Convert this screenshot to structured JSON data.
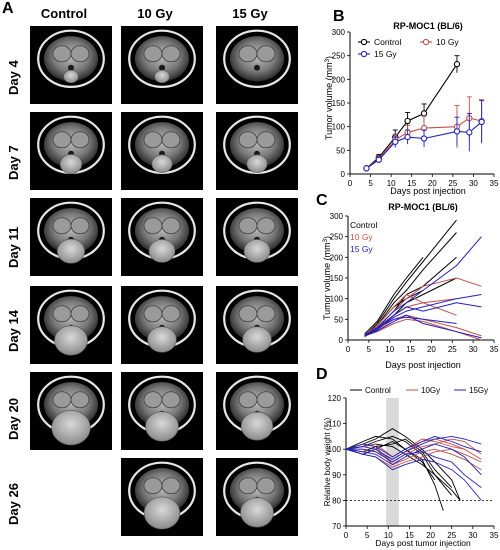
{
  "panels": {
    "a": "A",
    "b": "B",
    "c": "C",
    "d": "D"
  },
  "mri": {
    "columns": [
      "Control",
      "10 Gy",
      "15 Gy"
    ],
    "rows": [
      "Day 4",
      "Day 7",
      "Day 11",
      "Day 14",
      "Day 20",
      "Day 26"
    ]
  },
  "chart_data": [
    {
      "type": "line",
      "title": "RP-MOC1  (BL/6)",
      "xlabel": "Days post injection",
      "ylabel": "Tumor volume (mm3)",
      "xlim": [
        0,
        35
      ],
      "ylim": [
        0,
        300
      ],
      "xticks": [
        0,
        5,
        10,
        15,
        20,
        25,
        30,
        35
      ],
      "yticks": [
        0,
        50,
        100,
        150,
        200,
        250,
        300
      ],
      "legend": "top-left",
      "series": [
        {
          "name": "Control",
          "color": "#000000",
          "marker": "circle",
          "x": [
            4,
            7,
            11,
            14,
            18,
            26
          ],
          "y": [
            12,
            35,
            78,
            112,
            128,
            232
          ],
          "err": [
            3,
            6,
            15,
            18,
            20,
            18
          ]
        },
        {
          "name": "10 Gy",
          "color": "#c0504d",
          "marker": "circle",
          "x": [
            4,
            7,
            11,
            14,
            18,
            26,
            29,
            32
          ],
          "y": [
            12,
            32,
            72,
            88,
            97,
            100,
            118,
            112
          ],
          "err": [
            3,
            6,
            12,
            15,
            25,
            45,
            45,
            45
          ]
        },
        {
          "name": "15 Gy",
          "color": "#1f1fbf",
          "marker": "circle",
          "x": [
            4,
            7,
            11,
            14,
            18,
            26,
            29,
            32
          ],
          "y": [
            12,
            30,
            68,
            78,
            75,
            90,
            88,
            110
          ],
          "err": [
            3,
            6,
            12,
            15,
            18,
            30,
            40,
            45
          ]
        }
      ]
    },
    {
      "type": "line",
      "title": "RP-MOC1  (BL/6)",
      "xlabel": "Days post injection",
      "ylabel": "Tumor volume (mm3)",
      "xlim": [
        0,
        35
      ],
      "ylim": [
        0,
        300
      ],
      "xticks": [
        0,
        5,
        10,
        15,
        20,
        25,
        30,
        35
      ],
      "yticks": [
        0,
        50,
        100,
        150,
        200,
        250,
        300
      ],
      "legend": "top-left",
      "groups": [
        {
          "name": "Control",
          "color": "#000000",
          "lines": [
            {
              "x": [
                4,
                7,
                11,
                14,
                18,
                26
              ],
              "y": [
                10,
                40,
                100,
                140,
                190,
                290
              ]
            },
            {
              "x": [
                4,
                7,
                11,
                14,
                18,
                26
              ],
              "y": [
                12,
                35,
                90,
                120,
                170,
                260
              ]
            },
            {
              "x": [
                4,
                7,
                11,
                14,
                18
              ],
              "y": [
                15,
                45,
                110,
                150,
                200
              ]
            },
            {
              "x": [
                4,
                7,
                11,
                14,
                18,
                26
              ],
              "y": [
                8,
                30,
                70,
                110,
                130,
                200
              ]
            },
            {
              "x": [
                4,
                7,
                11,
                14,
                18
              ],
              "y": [
                10,
                35,
                80,
                100,
                120
              ]
            },
            {
              "x": [
                4,
                7,
                11,
                14,
                18,
                26
              ],
              "y": [
                11,
                30,
                60,
                90,
                110,
                150
              ]
            }
          ]
        },
        {
          "name": "10 Gy",
          "color": "#c0504d",
          "lines": [
            {
              "x": [
                4,
                7,
                11,
                14,
                18,
                26,
                32
              ],
              "y": [
                10,
                30,
                70,
                100,
                130,
                150,
                130
              ]
            },
            {
              "x": [
                4,
                7,
                11,
                14,
                18,
                26
              ],
              "y": [
                12,
                28,
                60,
                80,
                90,
                100
              ]
            },
            {
              "x": [
                4,
                7,
                11,
                14,
                18,
                26,
                32
              ],
              "y": [
                9,
                25,
                50,
                60,
                50,
                30,
                10
              ]
            },
            {
              "x": [
                4,
                7,
                11,
                14,
                18,
                26
              ],
              "y": [
                11,
                35,
                80,
                110,
                90,
                60
              ]
            },
            {
              "x": [
                4,
                7,
                11,
                14,
                18,
                26,
                32
              ],
              "y": [
                10,
                20,
                40,
                50,
                45,
                20,
                0
              ]
            }
          ]
        },
        {
          "name": "15 Gy",
          "color": "#1f1fbf",
          "lines": [
            {
              "x": [
                4,
                7,
                11,
                14,
                18,
                26,
                32
              ],
              "y": [
                10,
                30,
                70,
                90,
                120,
                180,
                250
              ]
            },
            {
              "x": [
                4,
                7,
                11,
                14,
                18,
                26,
                32
              ],
              "y": [
                12,
                28,
                55,
                70,
                80,
                100,
                110
              ]
            },
            {
              "x": [
                4,
                7,
                11,
                14,
                18,
                26,
                32
              ],
              "y": [
                9,
                25,
                60,
                80,
                70,
                90,
                80
              ]
            },
            {
              "x": [
                4,
                7,
                11,
                14,
                18,
                26
              ],
              "y": [
                11,
                30,
                50,
                55,
                50,
                40
              ]
            },
            {
              "x": [
                4,
                7,
                11,
                14,
                18,
                26,
                32
              ],
              "y": [
                10,
                22,
                45,
                60,
                40,
                20,
                5
              ]
            }
          ]
        }
      ]
    },
    {
      "type": "line",
      "title": "",
      "xlabel": "Days post tumor injection",
      "ylabel": "Relative body weight (%)",
      "xlim": [
        0,
        35
      ],
      "ylim": [
        70,
        120
      ],
      "xticks": [
        0,
        5,
        10,
        15,
        20,
        25,
        30,
        35
      ],
      "yticks": [
        70,
        80,
        90,
        100,
        110,
        120
      ],
      "legend": "top",
      "reference_line": 80,
      "shaded_x": [
        9.5,
        12.5
      ],
      "groups": [
        {
          "name": "Control",
          "color": "#000000",
          "lines": [
            {
              "x": [
                0,
                4,
                7,
                11,
                14,
                18,
                21,
                25,
                27
              ],
              "y": [
                100,
                102,
                104,
                108,
                105,
                100,
                95,
                88,
                80
              ]
            },
            {
              "x": [
                0,
                4,
                7,
                11,
                14,
                18,
                21,
                25
              ],
              "y": [
                100,
                101,
                103,
                105,
                103,
                98,
                90,
                82
              ]
            },
            {
              "x": [
                0,
                4,
                7,
                11,
                14,
                18,
                21,
                25
              ],
              "y": [
                100,
                99,
                101,
                102,
                104,
                99,
                92,
                85
              ]
            },
            {
              "x": [
                0,
                4,
                7,
                11,
                14,
                18,
                21
              ],
              "y": [
                100,
                103,
                105,
                104,
                100,
                95,
                88
              ]
            },
            {
              "x": [
                0,
                4,
                7,
                11,
                14,
                18,
                21,
                23
              ],
              "y": [
                100,
                98,
                100,
                103,
                100,
                96,
                86,
                76
              ]
            },
            {
              "x": [
                0,
                4,
                7,
                11,
                14,
                18,
                21,
                25,
                27
              ],
              "y": [
                100,
                101,
                102,
                101,
                98,
                94,
                90,
                84,
                80
              ]
            }
          ]
        },
        {
          "name": "10Gy",
          "color": "#c0504d",
          "lines": [
            {
              "x": [
                0,
                4,
                7,
                11,
                14,
                18,
                21,
                25,
                28,
                32
              ],
              "y": [
                100,
                101,
                102,
                97,
                100,
                104,
                103,
                101,
                100,
                96
              ]
            },
            {
              "x": [
                0,
                4,
                7,
                11,
                14,
                18,
                21,
                25,
                28,
                32
              ],
              "y": [
                100,
                99,
                100,
                95,
                98,
                101,
                102,
                104,
                103,
                98
              ]
            },
            {
              "x": [
                0,
                4,
                7,
                11,
                14,
                18,
                21,
                25,
                28,
                32
              ],
              "y": [
                100,
                102,
                101,
                94,
                96,
                99,
                100,
                98,
                96,
                92
              ]
            },
            {
              "x": [
                0,
                4,
                7,
                11,
                14,
                18,
                21,
                25,
                28
              ],
              "y": [
                100,
                100,
                99,
                96,
                99,
                103,
                104,
                102,
                100
              ]
            },
            {
              "x": [
                0,
                4,
                7,
                11,
                14,
                18,
                21,
                25,
                28,
                32
              ],
              "y": [
                100,
                98,
                97,
                93,
                95,
                97,
                99,
                100,
                98,
                95
              ]
            }
          ]
        },
        {
          "name": "15Gy",
          "color": "#1f1fbf",
          "lines": [
            {
              "x": [
                0,
                4,
                7,
                11,
                14,
                18,
                21,
                25,
                28,
                32
              ],
              "y": [
                100,
                101,
                100,
                96,
                99,
                102,
                104,
                105,
                104,
                102
              ]
            },
            {
              "x": [
                0,
                4,
                7,
                11,
                14,
                18,
                21,
                25,
                28,
                32
              ],
              "y": [
                100,
                99,
                98,
                94,
                97,
                100,
                102,
                100,
                97,
                90
              ]
            },
            {
              "x": [
                0,
                4,
                7,
                11,
                14,
                18,
                21,
                25,
                28,
                32
              ],
              "y": [
                100,
                100,
                99,
                95,
                98,
                99,
                97,
                95,
                90,
                85
              ]
            },
            {
              "x": [
                0,
                4,
                7,
                11,
                14,
                18,
                21,
                25,
                28,
                32
              ],
              "y": [
                100,
                102,
                101,
                97,
                100,
                103,
                105,
                103,
                101,
                99
              ]
            },
            {
              "x": [
                0,
                4,
                7,
                11,
                14,
                18,
                21,
                25,
                28,
                32
              ],
              "y": [
                100,
                98,
                97,
                92,
                94,
                96,
                95,
                92,
                88,
                80
              ]
            }
          ]
        }
      ]
    }
  ]
}
